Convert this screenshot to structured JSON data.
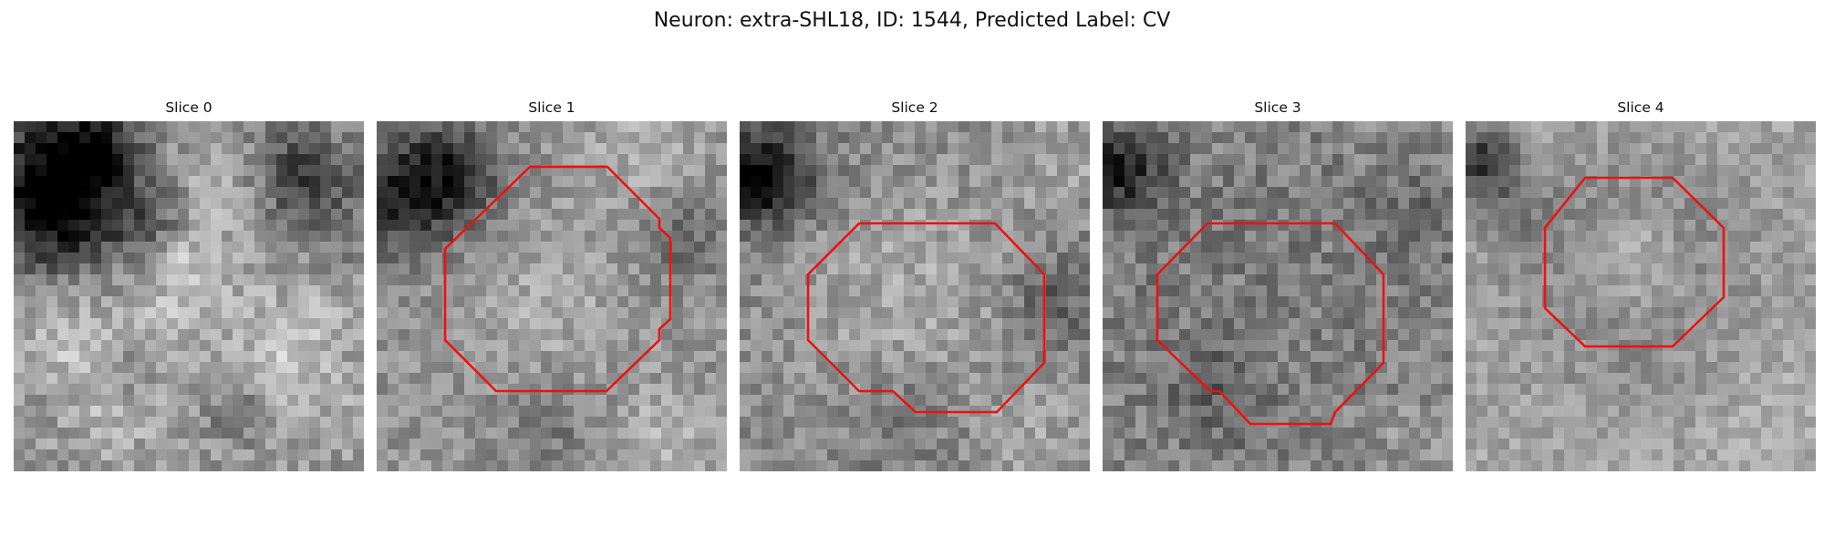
{
  "figure": {
    "title": "Neuron: extra-SHL18, ID: 1544, Predicted Label: CV"
  },
  "colors": {
    "contour": "#ee1111",
    "background": "#ffffff"
  },
  "slices": [
    {
      "label": "Slice 0",
      "has_contour": false
    },
    {
      "label": "Slice 1",
      "has_contour": true
    },
    {
      "label": "Slice 2",
      "has_contour": true
    },
    {
      "label": "Slice 3",
      "has_contour": true
    },
    {
      "label": "Slice 4",
      "has_contour": true
    }
  ]
}
